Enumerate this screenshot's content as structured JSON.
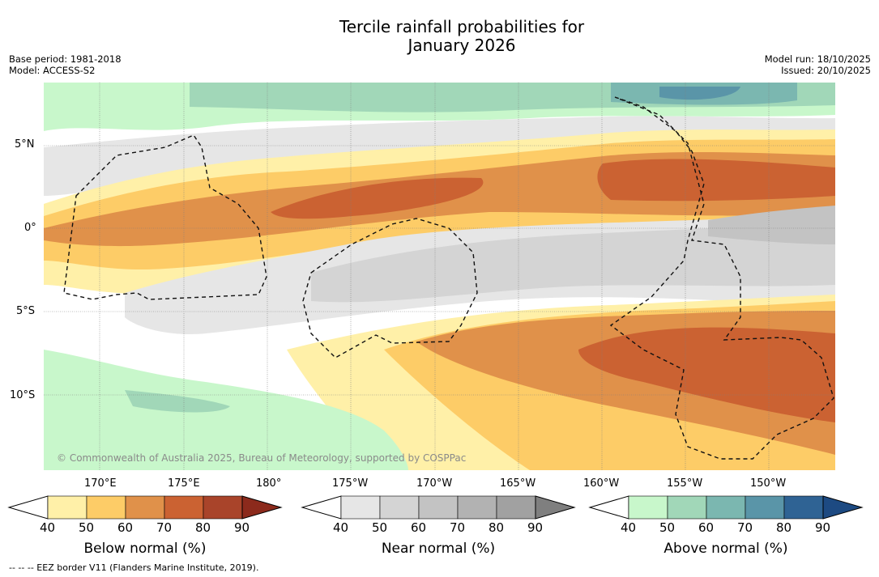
{
  "title_line1": "Tercile rainfall probabilities for",
  "title_line2": "January 2026",
  "base_period": "Base period: 1981-2018",
  "model": "Model: ACCESS-S2",
  "model_run": "Model run: 18/10/2025",
  "issued": "Issued: 20/10/2025",
  "lat_ticks": [
    "5°N",
    "0°",
    "5°S",
    "10°S"
  ],
  "lon_ticks": [
    "170°E",
    "175°E",
    "180°",
    "175°W",
    "170°W",
    "165°W",
    "160°W",
    "155°W",
    "150°W"
  ],
  "copyright": "© Commonwealth of Australia 2025, Bureau of Meteorology, supported by COSPPac",
  "footnote": "-- -- -- EEZ border V11 (Flanders Marine Institute, 2019).",
  "colorbars": [
    {
      "label": "Below normal (%)",
      "ticks": [
        "40",
        "50",
        "60",
        "70",
        "80",
        "90"
      ],
      "colors": [
        "#fff0a8",
        "#fdcc67",
        "#e0914a",
        "#cb6232",
        "#a9442a",
        "#8c2a1c"
      ]
    },
    {
      "label": "Near normal (%)",
      "ticks": [
        "40",
        "50",
        "60",
        "70",
        "80",
        "90"
      ],
      "colors": [
        "#e6e6e6",
        "#d4d4d4",
        "#c3c3c3",
        "#b2b2b2",
        "#a1a1a1",
        "#7f7f7f"
      ]
    },
    {
      "label": "Above normal (%)",
      "ticks": [
        "40",
        "50",
        "60",
        "70",
        "80",
        "90"
      ],
      "colors": [
        "#c8f7cb",
        "#a1d7b8",
        "#7bb7b0",
        "#5a95a8",
        "#2f6394",
        "#1d4a82"
      ]
    }
  ],
  "map_colors": {
    "below_40": "#fff0a8",
    "below_50": "#fdcc67",
    "below_60": "#e0914a",
    "below_70": "#cb6232",
    "near_40": "#e6e6e6",
    "near_50": "#d4d4d4",
    "near_60": "#c3c3c3",
    "near_70": "#b2b2b2",
    "above_40": "#c8f7cb",
    "above_50": "#a1d7b8",
    "above_60": "#7bb7b0",
    "above_70": "#5a95a8"
  }
}
